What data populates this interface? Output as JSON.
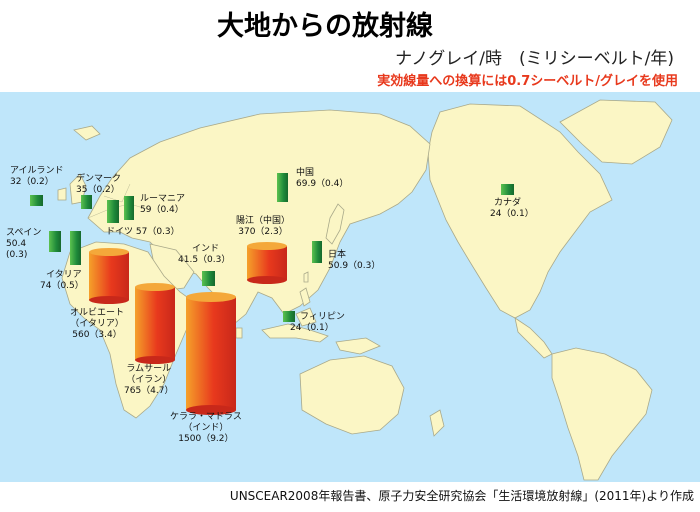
{
  "title": "大地からの放射線",
  "unit_line": "ナノグレイ/時　(ミリシーベルト/年)",
  "note": "実効線量への換算には0.7シーベルト/グレイを使用",
  "source": "UNSCEAR2008年報告書、原子力安全研究協会「生活環境放射線」(2011年)より作成",
  "colors": {
    "sea": "#bfe6fa",
    "land": "#fbf6c5",
    "low_bar": "#1f8a3a",
    "high_bar": "#e8391d"
  },
  "map_data": {
    "locations": [
      {
        "name": "アイルランド",
        "value": "32（0.2）",
        "nGy_h": 32,
        "mSv_y": 0.2
      },
      {
        "name": "デンマーク",
        "value": "35（0.2）",
        "nGy_h": 35,
        "mSv_y": 0.2
      },
      {
        "name": "ルーマニア",
        "value": "59（0.4）",
        "nGy_h": 59,
        "mSv_y": 0.4
      },
      {
        "name": "ドイツ",
        "value": "57（0.3）",
        "nGy_h": 57,
        "mSv_y": 0.3
      },
      {
        "name": "スペイン",
        "value": "50.4",
        "value2": "(0.3)",
        "nGy_h": 50.4,
        "mSv_y": 0.3
      },
      {
        "name": "イタリア",
        "value": "74（0.5）",
        "nGy_h": 74,
        "mSv_y": 0.5
      },
      {
        "name": "オルビエート",
        "name2": "（イタリア）",
        "value": "560（3.4）",
        "nGy_h": 560,
        "mSv_y": 3.4
      },
      {
        "name": "ラムサール",
        "name2": "（イラン）",
        "value": "765（4.7）",
        "nGy_h": 765,
        "mSv_y": 4.7
      },
      {
        "name": "ケララ・マドラス",
        "name2": "（インド）",
        "value": "1500（9.2）",
        "nGy_h": 1500,
        "mSv_y": 9.2
      },
      {
        "name": "インド",
        "value": "41.5（0.3）",
        "nGy_h": 41.5,
        "mSv_y": 0.3
      },
      {
        "name": "陽江（中国）",
        "value": "370（2.3）",
        "nGy_h": 370,
        "mSv_y": 2.3
      },
      {
        "name": "中国",
        "value": "69.9（0.4）",
        "nGy_h": 69.9,
        "mSv_y": 0.4
      },
      {
        "name": "日本",
        "value": "50.9（0.3）",
        "nGy_h": 50.9,
        "mSv_y": 0.3
      },
      {
        "name": "フィリピン",
        "value": "24（0.1）",
        "nGy_h": 24,
        "mSv_y": 0.1
      },
      {
        "name": "カナダ",
        "value": "24（0.1）",
        "nGy_h": 24,
        "mSv_y": 0.1
      }
    ]
  }
}
